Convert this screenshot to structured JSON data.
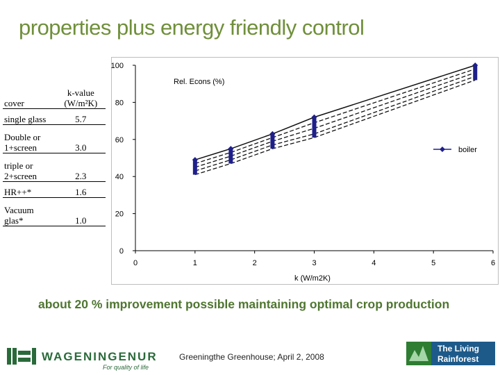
{
  "title": "properties plus energy friendly control",
  "table": {
    "header": {
      "cover": "cover",
      "kvalue": "k-value (W/m²K)"
    },
    "rows": [
      {
        "cover": "single glass",
        "k": "5.7"
      },
      {
        "cover": "Double or 1+screen",
        "k": "3.0"
      },
      {
        "cover": "triple or 2+screen",
        "k": "2.3"
      },
      {
        "cover": "HR++*",
        "k": "1.6"
      },
      {
        "cover": "Vacuum glas*",
        "k": "1.0"
      }
    ]
  },
  "chart_data": {
    "type": "line",
    "xlabel": "k (W/m2K)",
    "ylabel": "Rel. Econs (%)",
    "xlim": [
      0,
      6
    ],
    "ylim": [
      0,
      100
    ],
    "xticks": [
      "0",
      "1",
      "2",
      "3",
      "4",
      "5",
      "6"
    ],
    "yticks": [
      "0",
      "20",
      "40",
      "60",
      "80",
      "100"
    ],
    "legend_position": "right",
    "grid": false,
    "series": [
      {
        "name": "boiler",
        "x": [
          1.0,
          1.6,
          2.3,
          3.0,
          5.7
        ],
        "y": [
          49,
          55,
          63,
          72,
          100
        ],
        "color": "#1f1f8c"
      }
    ],
    "bands": [
      {
        "x": [
          1.0,
          1.6,
          2.3,
          3.0,
          5.7
        ],
        "y": [
          47,
          53,
          61,
          69,
          98
        ]
      },
      {
        "x": [
          1.0,
          1.6,
          2.3,
          3.0,
          5.7
        ],
        "y": [
          45,
          51,
          59,
          66,
          96
        ]
      },
      {
        "x": [
          1.0,
          1.6,
          2.3,
          3.0,
          5.7
        ],
        "y": [
          43,
          49,
          57,
          63,
          94
        ]
      },
      {
        "x": [
          1.0,
          1.6,
          2.3,
          3.0,
          5.7
        ],
        "y": [
          41,
          47,
          55,
          61,
          92
        ]
      }
    ]
  },
  "bottom_text": "about 20 % improvement possible maintaining optimal crop production",
  "footer": {
    "text": "Greeningthe Greenhouse; April 2, 2008",
    "left_logo": {
      "name": "WAGENINGENUR",
      "tagline": "For quality of life",
      "color": "#2a6a3a"
    },
    "right_logo": {
      "line1": "The Living",
      "line2": "Rainforest",
      "color": "#1d5a8a"
    }
  }
}
